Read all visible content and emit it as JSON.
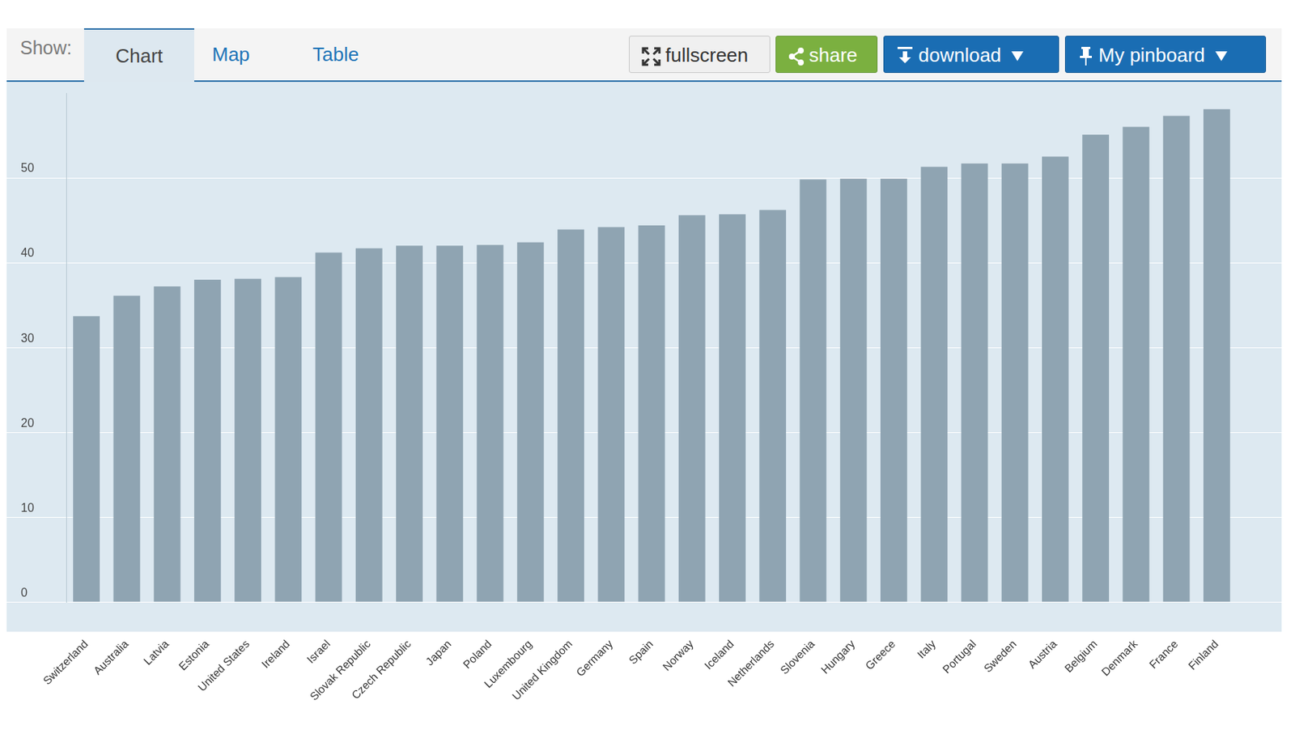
{
  "toolbar": {
    "show_label": "Show:",
    "tabs": [
      "Chart",
      "Map",
      "Table"
    ],
    "active_tab": "Chart",
    "buttons": [
      {
        "label": "fullscreen",
        "menu": false
      },
      {
        "label": "share",
        "menu": false
      },
      {
        "label": "download",
        "menu": true
      },
      {
        "label": "My pinboard",
        "menu": true
      }
    ]
  },
  "chart_data": {
    "type": "bar",
    "categories": [
      "Switzerland",
      "Australia",
      "Latvia",
      "Estonia",
      "United States",
      "Ireland",
      "Israel",
      "Slovak Republic",
      "Czech Republic",
      "Japan",
      "Poland",
      "Luxembourg",
      "United Kingdom",
      "Germany",
      "Spain",
      "Norway",
      "Iceland",
      "Netherlands",
      "Slovenia",
      "Hungary",
      "Greece",
      "Italy",
      "Portugal",
      "Sweden",
      "Austria",
      "Belgium",
      "Denmark",
      "France",
      "Finland"
    ],
    "values": [
      33.7,
      36.1,
      37.2,
      38.0,
      38.1,
      38.3,
      41.2,
      41.7,
      42.0,
      42.0,
      42.1,
      42.4,
      43.9,
      44.2,
      44.4,
      45.6,
      45.7,
      46.2,
      49.8,
      49.9,
      49.9,
      51.3,
      51.7,
      51.7,
      52.5,
      55.1,
      56.0,
      57.3,
      58.1
    ],
    "color": "#8fa4b2",
    "ylim": [
      0,
      60
    ],
    "yticks": [
      0,
      10,
      20,
      30,
      40,
      50
    ],
    "grid": true
  }
}
